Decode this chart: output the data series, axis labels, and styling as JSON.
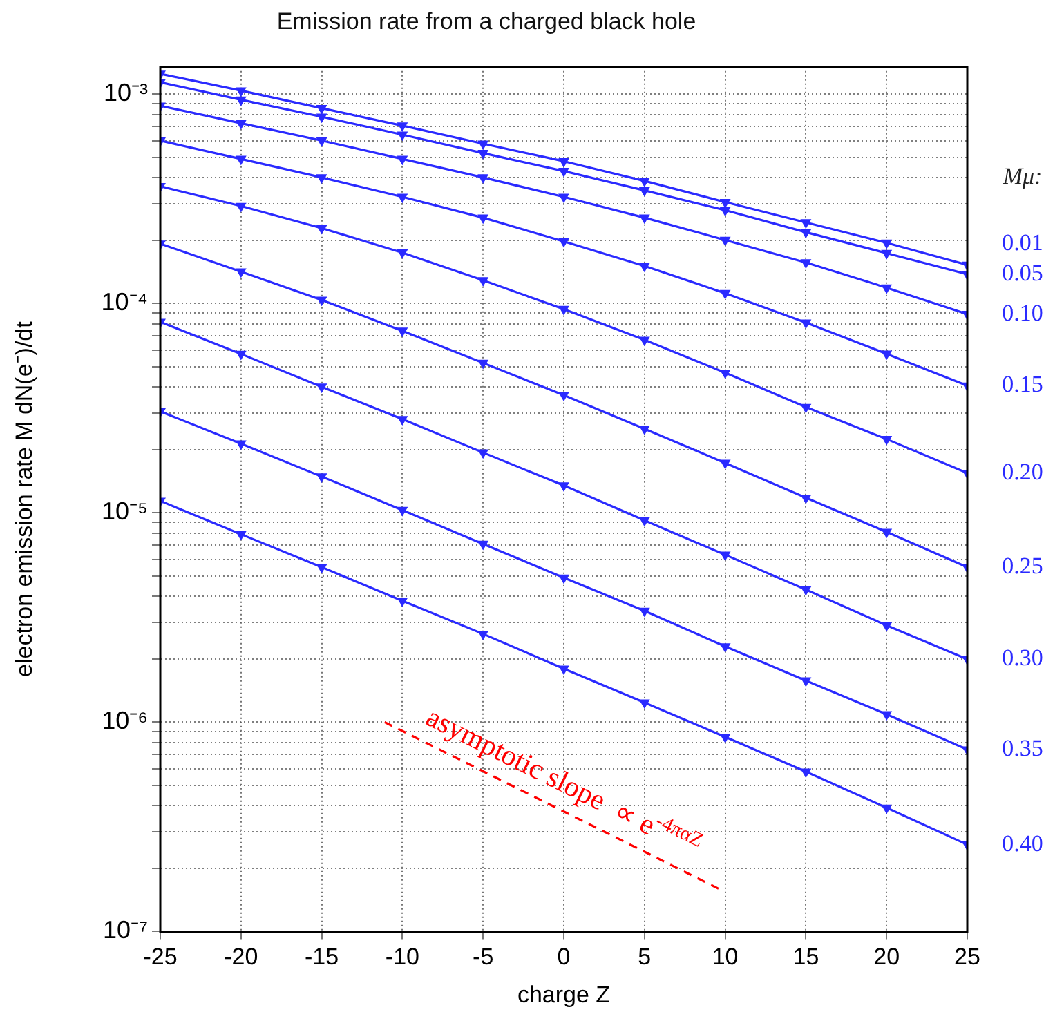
{
  "chart_data": {
    "type": "line",
    "title": "Emission rate from a charged black hole",
    "xlabel": "charge Z",
    "ylabel": "electron emission rate M dN(e⁻)/dt",
    "legend_title": "Mμ:",
    "legend": "right",
    "grid": true,
    "log": "y",
    "marker": "triangle",
    "line_style": "solid",
    "x": [
      -25,
      -20,
      -15,
      -10,
      -5,
      0,
      5,
      10,
      15,
      20,
      25
    ],
    "xlim": [
      -25,
      25
    ],
    "xticks": [
      -25,
      -20,
      -15,
      -10,
      -5,
      0,
      5,
      10,
      15,
      20,
      25
    ],
    "ylim": [
      1e-07,
      0.00135
    ],
    "yticks": [
      {
        "value": 1e-07,
        "label": "10⁻⁷"
      },
      {
        "value": 2e-07,
        "label": null
      },
      {
        "value": 3e-07,
        "label": null
      },
      {
        "value": 4e-07,
        "label": null
      },
      {
        "value": 5e-07,
        "label": null
      },
      {
        "value": 6e-07,
        "label": null
      },
      {
        "value": 7e-07,
        "label": null
      },
      {
        "value": 8e-07,
        "label": null
      },
      {
        "value": 9e-07,
        "label": null
      },
      {
        "value": 1e-06,
        "label": "10⁻⁶"
      },
      {
        "value": 2e-06,
        "label": null
      },
      {
        "value": 3e-06,
        "label": null
      },
      {
        "value": 4e-06,
        "label": null
      },
      {
        "value": 5e-06,
        "label": null
      },
      {
        "value": 6e-06,
        "label": null
      },
      {
        "value": 7e-06,
        "label": null
      },
      {
        "value": 8e-06,
        "label": null
      },
      {
        "value": 9e-06,
        "label": null
      },
      {
        "value": 1e-05,
        "label": "10⁻⁵"
      },
      {
        "value": 2e-05,
        "label": null
      },
      {
        "value": 3e-05,
        "label": null
      },
      {
        "value": 4e-05,
        "label": null
      },
      {
        "value": 5e-05,
        "label": null
      },
      {
        "value": 6e-05,
        "label": null
      },
      {
        "value": 7e-05,
        "label": null
      },
      {
        "value": 8e-05,
        "label": null
      },
      {
        "value": 9e-05,
        "label": null
      },
      {
        "value": 0.0001,
        "label": "10⁻⁴"
      },
      {
        "value": 0.0002,
        "label": null
      },
      {
        "value": 0.0003,
        "label": null
      },
      {
        "value": 0.0004,
        "label": null
      },
      {
        "value": 0.0005,
        "label": null
      },
      {
        "value": 0.0006,
        "label": null
      },
      {
        "value": 0.0007,
        "label": null
      },
      {
        "value": 0.0008,
        "label": null
      },
      {
        "value": 0.0009,
        "label": null
      },
      {
        "value": 0.001,
        "label": "10⁻³"
      }
    ],
    "series": [
      {
        "name": "0.01",
        "color": "#2a2aff",
        "values": [
          0.00125,
          0.00104,
          0.000857,
          0.000707,
          0.00058,
          0.000478,
          0.000385,
          0.000305,
          0.000244,
          0.000195,
          0.000153
        ]
      },
      {
        "name": "0.05",
        "color": "#2a2aff",
        "values": [
          0.00114,
          0.00094,
          0.00078,
          0.00064,
          0.000523,
          0.000429,
          0.000347,
          0.000279,
          0.000219,
          0.000174,
          0.000138
        ]
      },
      {
        "name": "0.10",
        "color": "#2a2aff",
        "values": [
          0.00088,
          0.000726,
          0.0006,
          0.00049,
          0.0004,
          0.000323,
          0.000257,
          0.000201,
          0.000157,
          0.000119,
          8.9e-05
        ]
      },
      {
        "name": "0.15",
        "color": "#2a2aff",
        "values": [
          0.0006,
          0.00049,
          0.0004,
          0.000323,
          0.000257,
          0.000198,
          0.000151,
          0.000112,
          8.1e-05,
          5.75e-05,
          4.05e-05
        ]
      },
      {
        "name": "0.20",
        "color": "#2a2aff",
        "values": [
          0.000363,
          0.000292,
          0.000229,
          0.000175,
          0.000129,
          9.4e-05,
          6.7e-05,
          4.67e-05,
          3.2e-05,
          2.25e-05,
          1.55e-05
        ]
      },
      {
        "name": "0.25",
        "color": "#2a2aff",
        "values": [
          0.000193,
          0.000142,
          0.000104,
          7.4e-05,
          5.2e-05,
          3.65e-05,
          2.52e-05,
          1.73e-05,
          1.18e-05,
          8.1e-06,
          5.5e-06
        ]
      },
      {
        "name": "0.30",
        "color": "#2a2aff",
        "values": [
          8.16e-05,
          5.74e-05,
          4e-05,
          2.8e-05,
          1.94e-05,
          1.35e-05,
          9.2e-06,
          6.3e-06,
          4.3e-06,
          2.9e-06,
          2e-06
        ]
      },
      {
        "name": "0.35",
        "color": "#2a2aff",
        "values": [
          3.05e-05,
          2.14e-05,
          1.49e-05,
          1.03e-05,
          7.1e-06,
          4.9e-06,
          3.4e-06,
          2.3e-06,
          1.58e-06,
          1.09e-06,
          7.4e-07
        ]
      },
      {
        "name": "0.40",
        "color": "#2a2aff",
        "values": [
          1.14e-05,
          7.9e-06,
          5.5e-06,
          3.8e-06,
          2.64e-06,
          1.8e-06,
          1.24e-06,
          8.5e-07,
          5.8e-07,
          3.9e-07,
          2.6e-07
        ]
      },
      {
        "color": "#ff0000",
        "x": [
          -11.1,
          9.6
        ],
        "values": [
          1e-06,
          1.6e-07
        ],
        "marker": "none",
        "line_style": "dashed"
      }
    ],
    "annotations": [
      "asymptotic slope  ∝ e$^{-4παZ}$"
    ]
  }
}
